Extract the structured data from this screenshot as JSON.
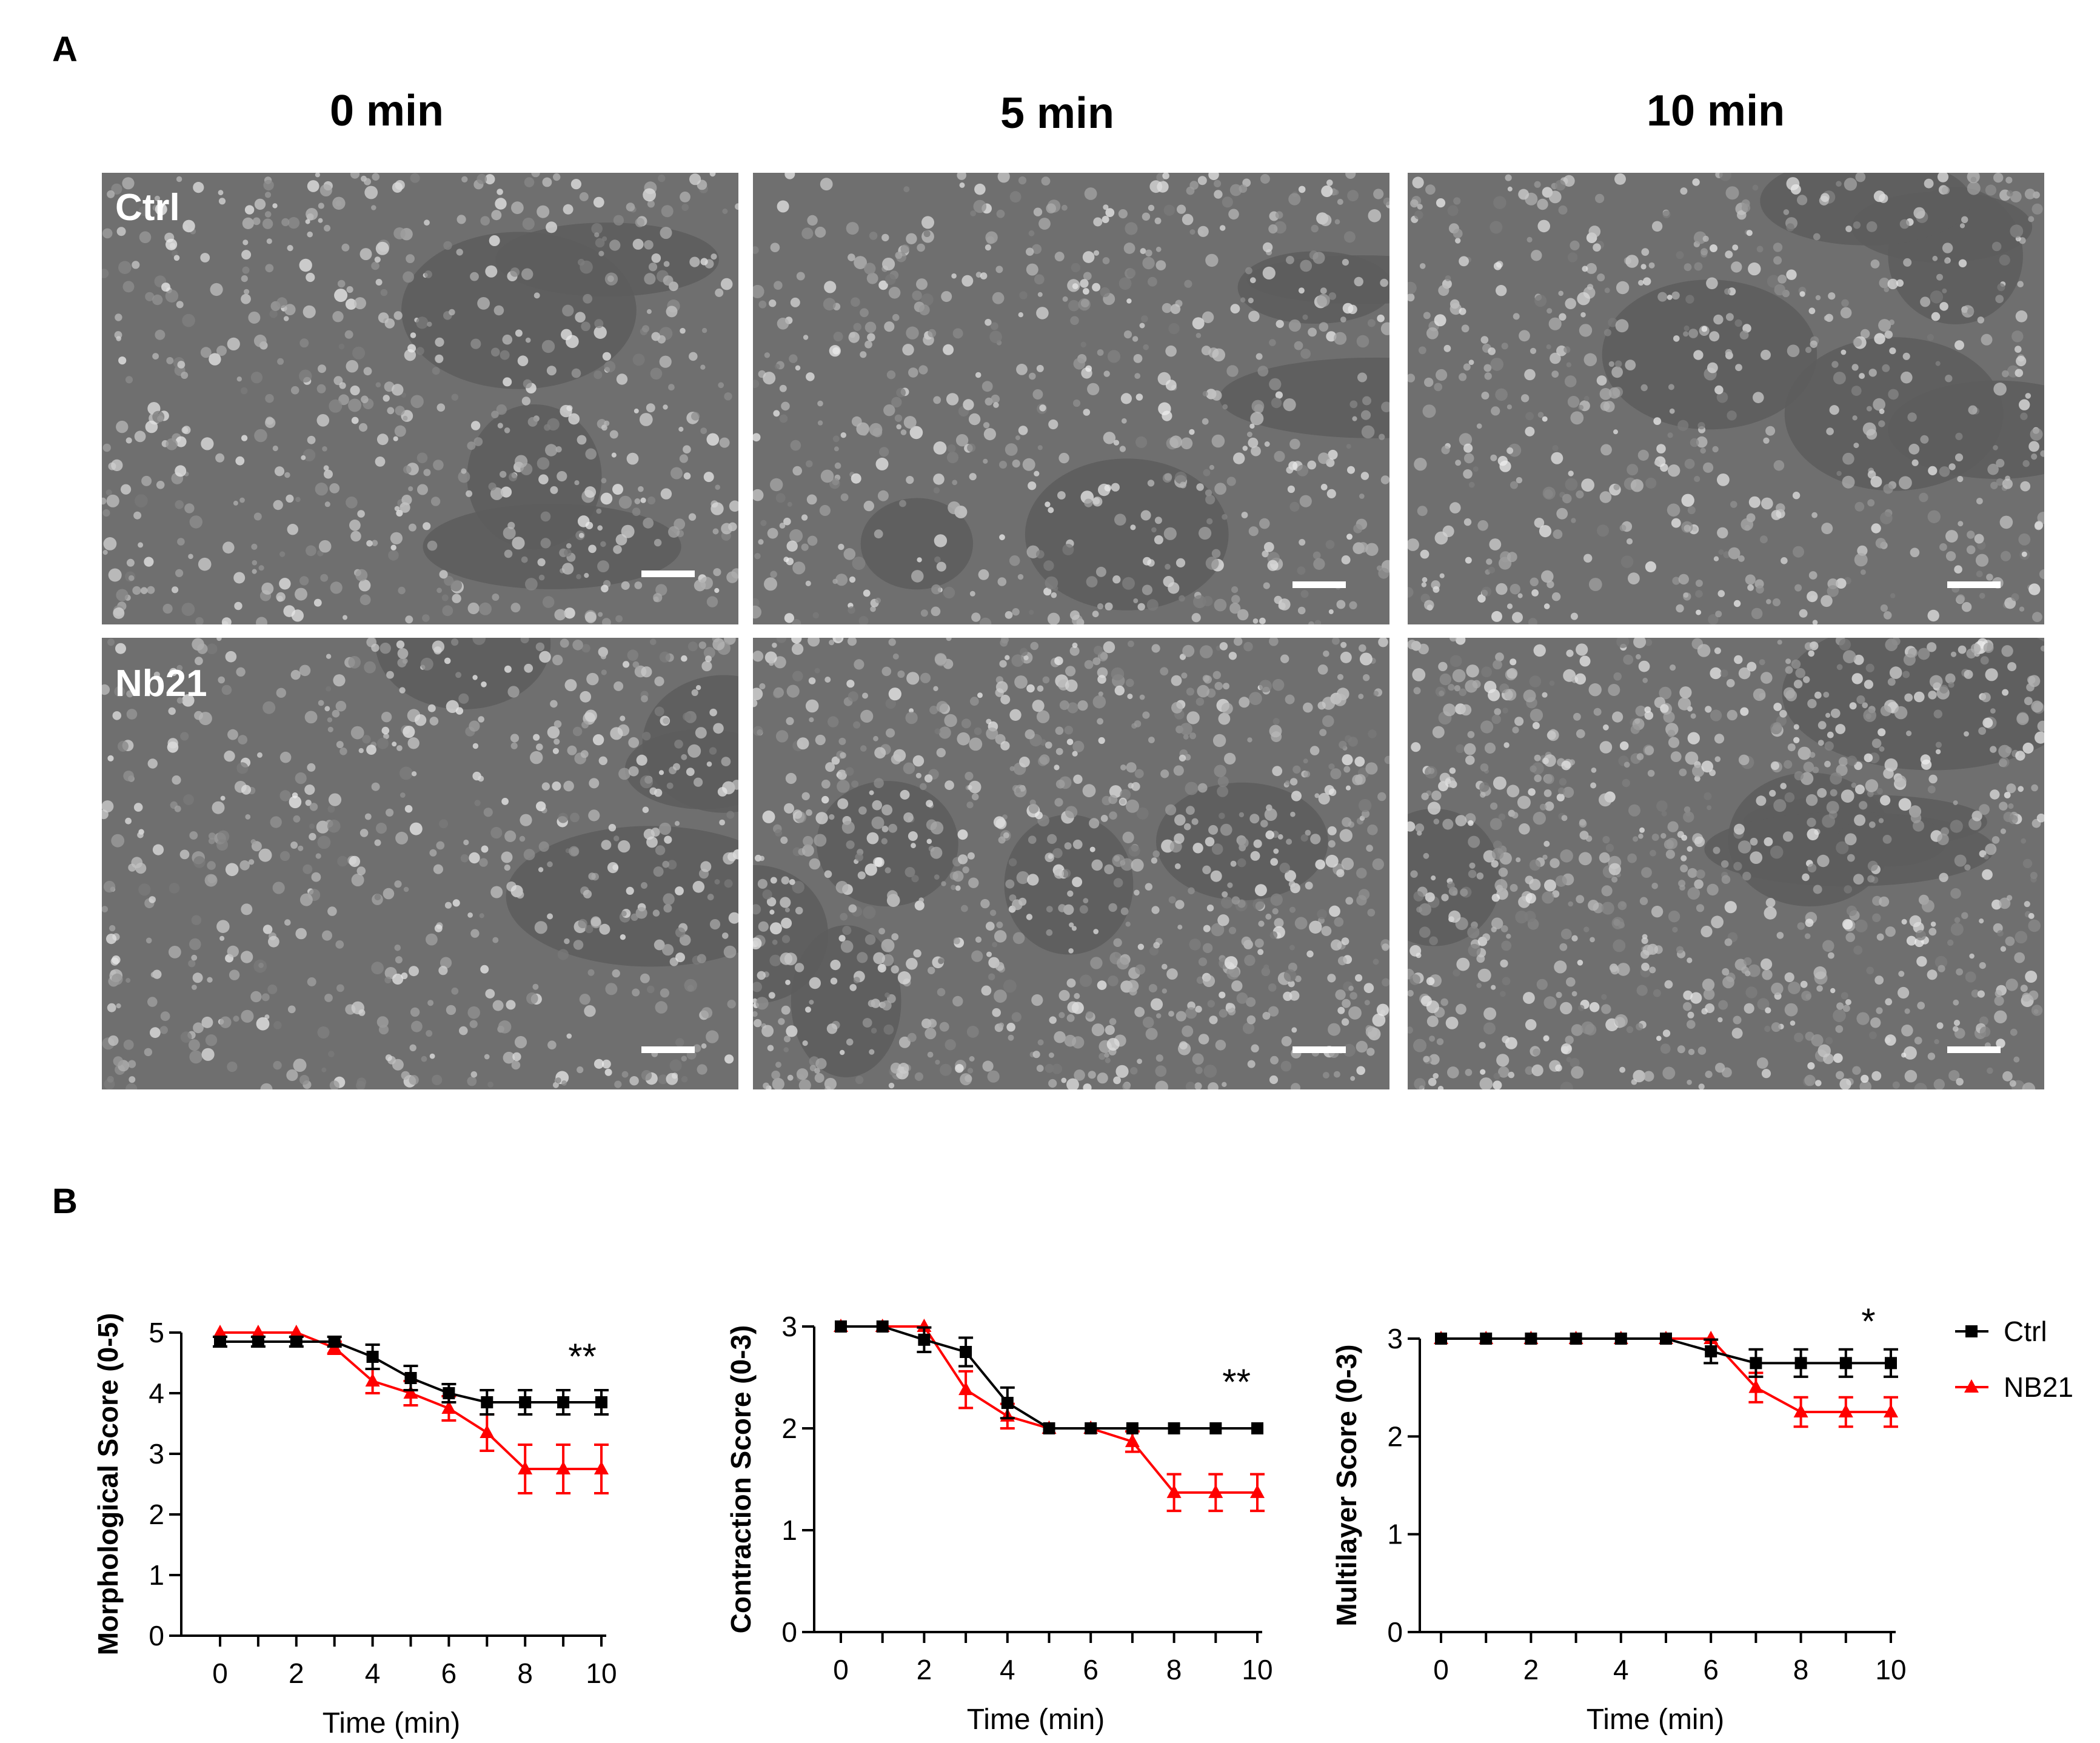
{
  "figure": {
    "panel_a_label": "A",
    "panel_b_label": "B",
    "time_headers": [
      "0 min",
      "5 min",
      "10 min"
    ],
    "row_labels": [
      "Ctrl",
      "Nb21"
    ]
  },
  "colors": {
    "ctrl": "#000000",
    "nb21": "#ff0000",
    "bar": "#ffffff"
  },
  "chart_data": [
    {
      "type": "line",
      "ylabel": "Morphological Score (0-5)",
      "xlabel": "Time (min)",
      "ylim": [
        0,
        5
      ],
      "yticks": [
        "0",
        "1",
        "2",
        "3",
        "4",
        "5"
      ],
      "xticks": [
        "0",
        "2",
        "4",
        "6",
        "8",
        "10"
      ],
      "x": [
        0,
        1,
        2,
        3,
        4,
        5,
        6,
        7,
        8,
        9,
        10
      ],
      "series": [
        {
          "name": "Ctrl",
          "color": "#000000",
          "marker": "square",
          "values": [
            4.85,
            4.85,
            4.85,
            4.85,
            4.6,
            4.25,
            4.0,
            3.85,
            3.85,
            3.85,
            3.85
          ],
          "errors": [
            0.08,
            0.08,
            0.08,
            0.08,
            0.2,
            0.2,
            0.15,
            0.2,
            0.2,
            0.2,
            0.2
          ]
        },
        {
          "name": "NB21",
          "color": "#ff0000",
          "marker": "triangle",
          "values": [
            5.0,
            5.0,
            5.0,
            4.75,
            4.2,
            4.0,
            3.75,
            3.35,
            2.75,
            2.75,
            2.75
          ],
          "errors": [
            0,
            0,
            0,
            0.1,
            0.2,
            0.2,
            0.2,
            0.3,
            0.4,
            0.4,
            0.4
          ]
        }
      ],
      "annotation": "**"
    },
    {
      "type": "line",
      "ylabel": "Contraction Score (0-3)",
      "xlabel": "Time (min)",
      "ylim": [
        0,
        3
      ],
      "yticks": [
        "0",
        "1",
        "2",
        "3"
      ],
      "xticks": [
        "0",
        "2",
        "4",
        "6",
        "8",
        "10"
      ],
      "x": [
        0,
        1,
        2,
        3,
        4,
        5,
        6,
        7,
        8,
        9,
        10
      ],
      "series": [
        {
          "name": "Ctrl",
          "color": "#000000",
          "marker": "square",
          "values": [
            3.0,
            3.0,
            2.87,
            2.75,
            2.25,
            2.0,
            2.0,
            2.0,
            2.0,
            2.0,
            2.0
          ],
          "errors": [
            0,
            0,
            0.12,
            0.14,
            0.15,
            0,
            0,
            0,
            0,
            0,
            0
          ]
        },
        {
          "name": "NB21",
          "color": "#ff0000",
          "marker": "triangle",
          "values": [
            3.0,
            3.0,
            3.0,
            2.38,
            2.12,
            2.0,
            2.0,
            1.87,
            1.37,
            1.37,
            1.37
          ],
          "errors": [
            0,
            0,
            0,
            0.18,
            0.12,
            0,
            0,
            0.1,
            0.18,
            0.18,
            0.18
          ]
        }
      ],
      "annotation": "**"
    },
    {
      "type": "line",
      "ylabel": "Multilayer Score (0-3)",
      "xlabel": "Time (min)",
      "ylim": [
        0,
        3
      ],
      "yticks": [
        "0",
        "1",
        "2",
        "3"
      ],
      "xticks": [
        "0",
        "2",
        "4",
        "6",
        "8",
        "10"
      ],
      "x": [
        0,
        1,
        2,
        3,
        4,
        5,
        6,
        7,
        8,
        9,
        10
      ],
      "series": [
        {
          "name": "Ctrl",
          "color": "#000000",
          "marker": "square",
          "values": [
            3.0,
            3.0,
            3.0,
            3.0,
            3.0,
            3.0,
            2.87,
            2.75,
            2.75,
            2.75,
            2.75
          ],
          "errors": [
            0,
            0,
            0,
            0,
            0,
            0,
            0.12,
            0.14,
            0.14,
            0.14,
            0.14
          ]
        },
        {
          "name": "NB21",
          "color": "#ff0000",
          "marker": "triangle",
          "values": [
            3.0,
            3.0,
            3.0,
            3.0,
            3.0,
            3.0,
            3.0,
            2.5,
            2.25,
            2.25,
            2.25
          ],
          "errors": [
            0,
            0,
            0,
            0,
            0,
            0,
            0,
            0.15,
            0.15,
            0.15,
            0.15
          ]
        }
      ],
      "annotation": "*",
      "legend": {
        "position": "right",
        "entries": [
          "Ctrl",
          "NB21"
        ]
      }
    }
  ]
}
